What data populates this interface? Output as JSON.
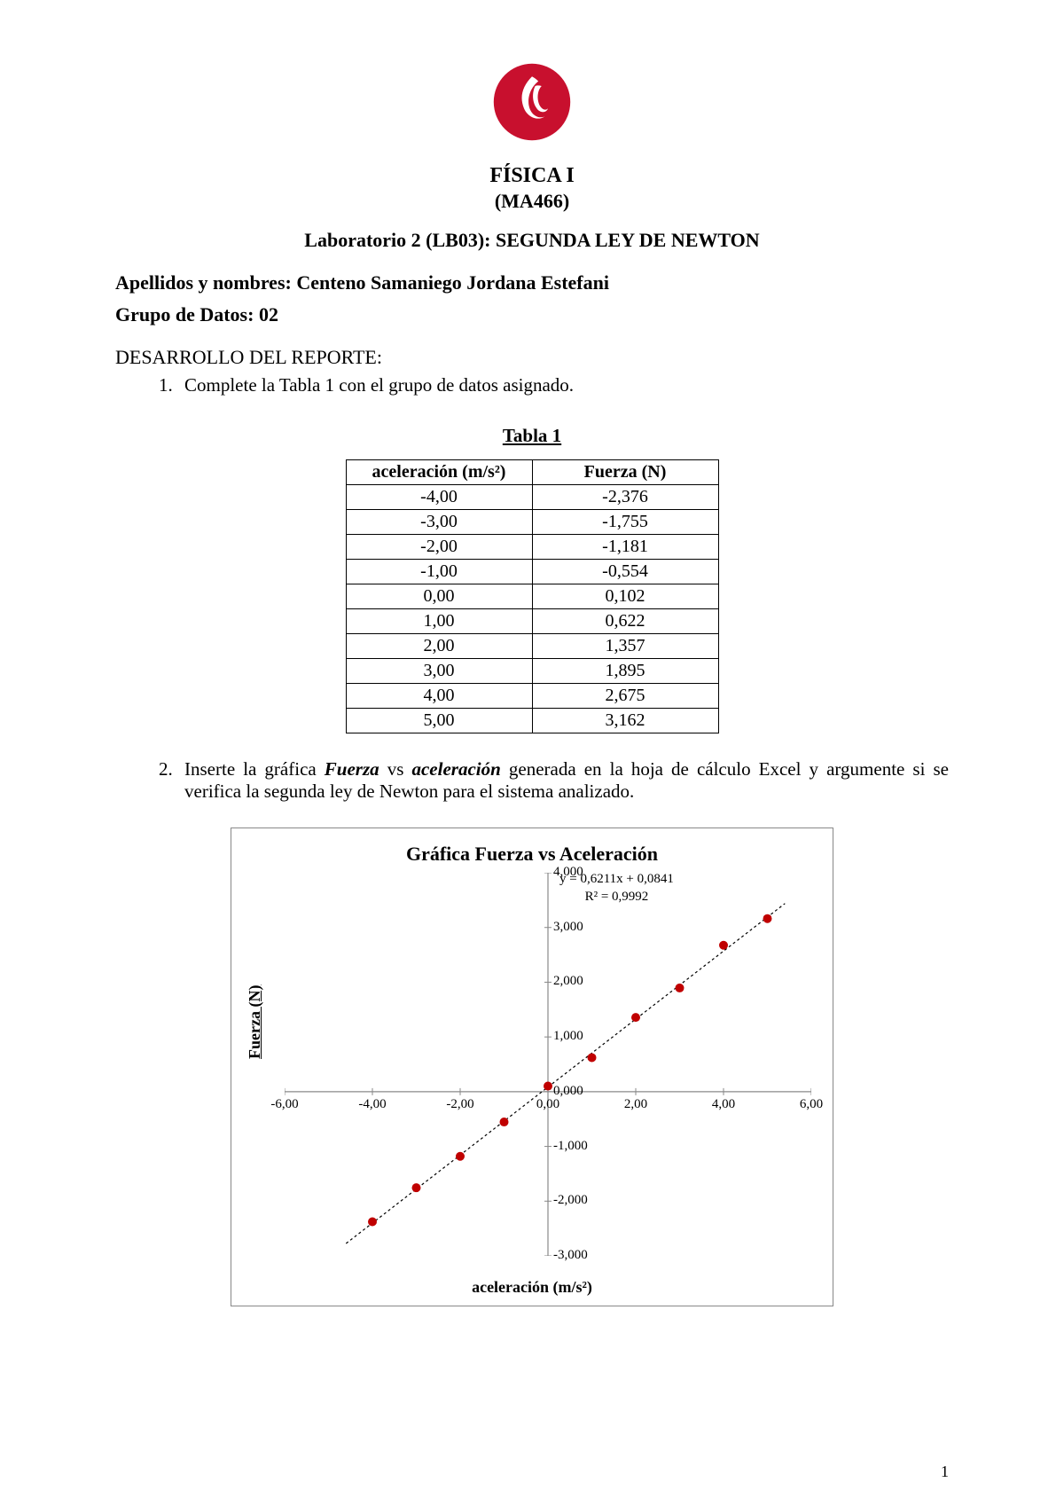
{
  "header": {
    "course_title": "FÍSICA I",
    "course_code": "(MA466)",
    "lab_title": "Laboratorio 2 (LB03): SEGUNDA LEY DE NEWTON",
    "name_label": "Apellidos y nombres: Centeno Samaniego Jordana Estefani",
    "group_label": "Grupo de Datos: 02",
    "section_label": "DESARROLLO DEL REPORTE:"
  },
  "logo": {
    "color": "#c8102e",
    "background": "#ffffff"
  },
  "instructions": {
    "item1": "Complete la Tabla 1 con el grupo de datos asignado.",
    "item2_pre": "Inserte la gráfica ",
    "item2_em1": "Fuerza",
    "item2_vs": " vs ",
    "item2_em2": "aceleración",
    "item2_post": " generada en la hoja de cálculo Excel y argumente si se verifica la segunda ley de Newton para el sistema analizado."
  },
  "table": {
    "caption": "Tabla 1",
    "col1": "aceleración (m/s²)",
    "col2": "Fuerza (N)",
    "rows": [
      [
        "-4,00",
        "-2,376"
      ],
      [
        "-3,00",
        "-1,755"
      ],
      [
        "-2,00",
        "-1,181"
      ],
      [
        "-1,00",
        "-0,554"
      ],
      [
        "0,00",
        "0,102"
      ],
      [
        "1,00",
        "0,622"
      ],
      [
        "2,00",
        "1,357"
      ],
      [
        "3,00",
        "1,895"
      ],
      [
        "4,00",
        "2,675"
      ],
      [
        "5,00",
        "3,162"
      ]
    ]
  },
  "chart": {
    "type": "scatter",
    "title": "Gráfica Fuerza vs Aceleración",
    "equation_line1": "y = 0,6211x + 0,0841",
    "equation_line2": "R² = 0,9992",
    "xlabel": "aceleración (m/s²)",
    "ylabel": "Fuerza (N)",
    "xlim": [
      -6,
      6
    ],
    "ylim": [
      -3,
      4
    ],
    "xticks": [
      -6,
      -4,
      -2,
      0,
      2,
      4,
      6
    ],
    "xtick_labels": [
      "-6,00",
      "-4,00",
      "-2,00",
      "0,00",
      "2,00",
      "4,00",
      "6,00"
    ],
    "yticks": [
      -3,
      -2,
      -1,
      0,
      1,
      2,
      3,
      4
    ],
    "ytick_labels": [
      "-3,000",
      "-2,000",
      "-1,000",
      "0,000",
      "1,000",
      "2,000",
      "3,000",
      "4,000"
    ],
    "marker_color": "#c00000",
    "marker_size": 5,
    "trend_slope": 0.6211,
    "trend_intercept": 0.0841,
    "trend_color": "#000000",
    "trend_dash": "3,3",
    "axis_color": "#888888",
    "data_x": [
      -4,
      -3,
      -2,
      -1,
      0,
      1,
      2,
      3,
      4,
      5
    ],
    "data_y": [
      -2.376,
      -1.755,
      -1.181,
      -0.554,
      0.102,
      0.622,
      1.357,
      1.895,
      2.675,
      3.162
    ]
  },
  "page_number": "1"
}
